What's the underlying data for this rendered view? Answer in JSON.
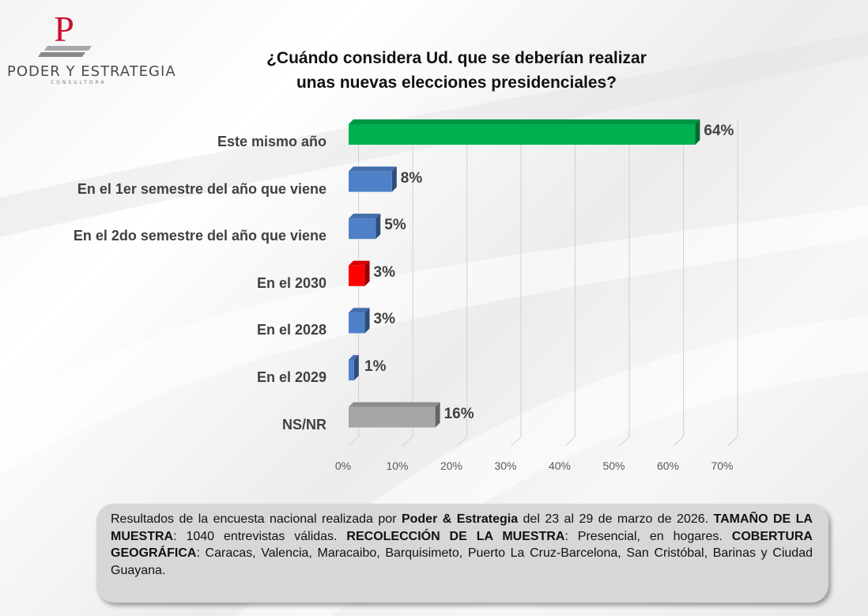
{
  "brand": {
    "name": "PODER Y ESTRATEGIA",
    "subtitle": "CONSULTORA",
    "logo_letter": "P"
  },
  "colors": {
    "green": "#00b050",
    "blue": "#4f81c9",
    "red": "#ff0000",
    "gray": "#a6a6a6"
  },
  "chart_data": {
    "type": "bar",
    "orientation": "horizontal",
    "title": "¿Cuándo considera Ud. que se deberían realizar unas nuevas elecciones presidenciales?",
    "title_lines": [
      "¿Cuándo considera Ud. que se deberían realizar",
      "unas nuevas elecciones presidenciales?"
    ],
    "categories": [
      "Este mismo año",
      "En el 1er semestre del año que viene",
      "En el 2do semestre del año que viene",
      "En el 2030",
      "En el 2028",
      "En el 2029",
      "NS/NR"
    ],
    "values": [
      64,
      8,
      5,
      3,
      3,
      1,
      16
    ],
    "value_labels": [
      "64%",
      "8%",
      "5%",
      "3%",
      "3%",
      "1%",
      "16%"
    ],
    "bar_colors": [
      "green",
      "blue",
      "blue",
      "red",
      "blue",
      "blue",
      "gray"
    ],
    "xlim": [
      0,
      70
    ],
    "xticks": [
      0,
      10,
      20,
      30,
      40,
      50,
      60,
      70
    ],
    "xtick_labels": [
      "0%",
      "10%",
      "20%",
      "30%",
      "40%",
      "50%",
      "60%",
      "70%"
    ],
    "grid": true,
    "legend": "none"
  },
  "footnote": {
    "intro": "Resultados de la encuesta nacional realizada por",
    "org": "Poder & Estrategia",
    "dates": "del 23 al 29 de marzo de 2026.",
    "sample_label": "TAMAÑO DE LA MUESTRA",
    "sample_value": ": 1040 entrevistas válidas.",
    "collection_label": "RECOLECCIÓN DE LA MUESTRA",
    "collection_value": ": Presencial, en hogares.",
    "coverage_label": "COBERTURA GEOGRÁFICA",
    "coverage_value": ": Caracas, Valencia, Maracaibo, Barquisimeto, Puerto La Cruz-Barcelona, San Cristóbal, Barinas y Ciudad Guayana."
  }
}
